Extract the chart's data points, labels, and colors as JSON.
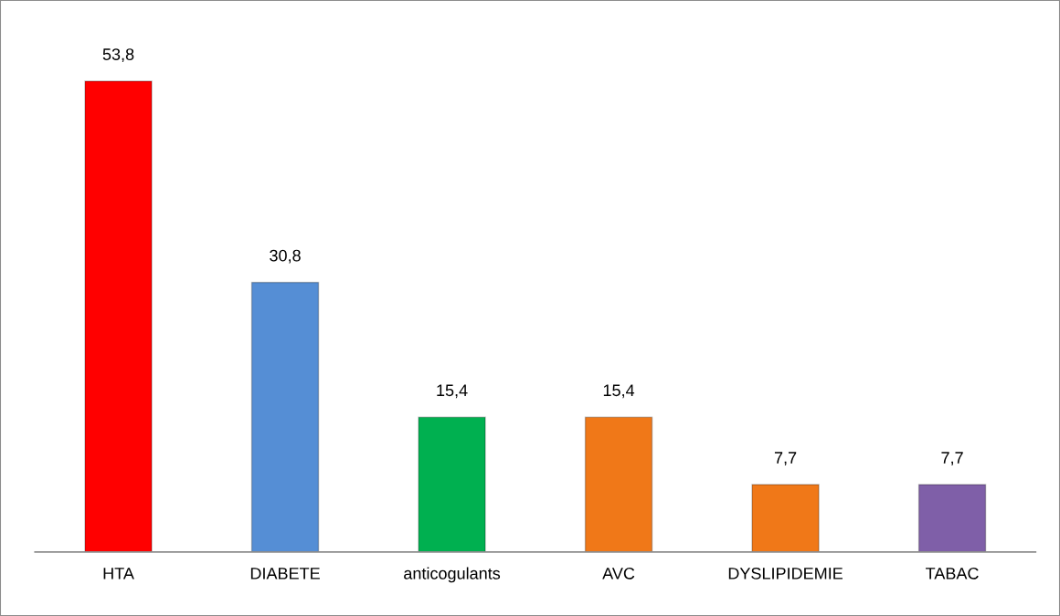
{
  "chart_data": {
    "type": "bar",
    "categories": [
      "HTA",
      "DIABETE",
      "anticogulants",
      "AVC",
      "DYSLIPIDEMIE",
      "TABAC"
    ],
    "values": [
      53.8,
      30.8,
      15.4,
      15.4,
      7.7,
      7.7
    ],
    "colors": [
      "#ff0000",
      "#558ed5",
      "#00b050",
      "#f07818",
      "#f07818",
      "#7f5fa8"
    ],
    "value_labels": [
      "53,8",
      "30,8",
      "15,4",
      "15,4",
      "7,7",
      "7,7"
    ],
    "grid": false,
    "legend": false
  }
}
